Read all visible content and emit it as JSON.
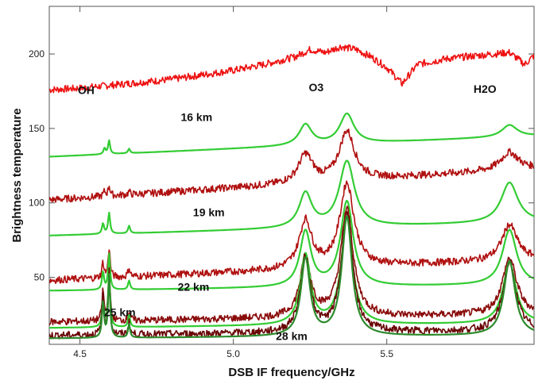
{
  "chart_data": {
    "type": "line",
    "title": "",
    "xlabel": "DSB IF frequency/GHz",
    "ylabel": "Brightness temperature",
    "xlim": [
      4.4,
      5.98
    ],
    "ylim": [
      5,
      232
    ],
    "x_ticks": [
      4.5,
      5.0,
      5.5
    ],
    "x_tick_labels": [
      "4.5",
      "5.0",
      "5.5"
    ],
    "y_ticks": [
      50,
      100,
      150,
      200
    ],
    "y_tick_labels": [
      "50",
      "100",
      "150",
      "200"
    ],
    "grid": false,
    "legend": "none",
    "annotations": [
      {
        "text": "OH",
        "x": 4.52,
        "y": 173
      },
      {
        "text": "O3",
        "x": 5.27,
        "y": 175
      },
      {
        "text": "H2O",
        "x": 5.82,
        "y": 174
      },
      {
        "text": "16 km",
        "x": 4.88,
        "y": 155
      },
      {
        "text": "19 km",
        "x": 4.92,
        "y": 91
      },
      {
        "text": "22 km",
        "x": 4.87,
        "y": 41
      },
      {
        "text": "25 km",
        "x": 4.63,
        "y": 24
      },
      {
        "text": "28 km",
        "x": 5.19,
        "y": 8
      }
    ],
    "series": [
      {
        "color": "#ee1111",
        "style": "measured",
        "x": [
          4.4,
          4.5,
          4.6,
          4.7,
          4.8,
          4.9,
          5.0,
          5.1,
          5.2,
          5.25,
          5.3,
          5.35,
          5.4,
          5.45,
          5.5,
          5.55,
          5.6,
          5.7,
          5.8,
          5.9,
          5.95,
          5.98
        ],
        "y": [
          176,
          177,
          179,
          181,
          183,
          186,
          189,
          193,
          198,
          203,
          201,
          205,
          203,
          198,
          191,
          180,
          193,
          197,
          199,
          201,
          193,
          199
        ]
      },
      {
        "color": "#33cc33",
        "style": "model",
        "base": [
          131,
          145
        ],
        "lines": [
          [
            4.58,
            4
          ],
          [
            4.595,
            9
          ],
          [
            4.66,
            3
          ],
          [
            5.235,
            14,
            0.025
          ],
          [
            5.37,
            20,
            0.028
          ],
          [
            5.9,
            8,
            0.03
          ]
        ]
      },
      {
        "color": "#b01010",
        "style": "measured",
        "base": [
          102,
          123
        ],
        "lines": [
          [
            4.58,
            3
          ],
          [
            4.595,
            7
          ],
          [
            4.66,
            2
          ],
          [
            5.235,
            19,
            0.028
          ],
          [
            5.37,
            33,
            0.03
          ],
          [
            5.9,
            12,
            0.035
          ]
        ]
      },
      {
        "color": "#33cc33",
        "style": "model",
        "base": [
          78,
          87
        ],
        "lines": [
          [
            4.575,
            7
          ],
          [
            4.595,
            14
          ],
          [
            4.66,
            5
          ],
          [
            5.235,
            23,
            0.025
          ],
          [
            5.37,
            44,
            0.03
          ],
          [
            5.9,
            27,
            0.033
          ]
        ]
      },
      {
        "color": "#b01010",
        "style": "measured",
        "base": [
          48,
          62
        ],
        "lines": [
          [
            4.575,
            10
          ],
          [
            4.595,
            20
          ],
          [
            4.66,
            6
          ],
          [
            5.235,
            32,
            0.025
          ],
          [
            5.37,
            56,
            0.028
          ],
          [
            5.9,
            24,
            0.03
          ]
        ]
      },
      {
        "color": "#33cc33",
        "style": "model",
        "base": [
          41,
          45
        ],
        "lines": [
          [
            4.575,
            12
          ],
          [
            4.595,
            24
          ],
          [
            4.66,
            6
          ],
          [
            5.235,
            37,
            0.022
          ],
          [
            5.37,
            57,
            0.025
          ],
          [
            5.9,
            37,
            0.028
          ]
        ]
      },
      {
        "color": "#8a0a0a",
        "style": "measured",
        "base": [
          20,
          25
        ],
        "lines": [
          [
            4.575,
            20
          ],
          [
            4.595,
            32
          ],
          [
            4.66,
            6
          ],
          [
            5.235,
            39,
            0.022
          ],
          [
            5.37,
            72,
            0.025
          ],
          [
            5.9,
            38,
            0.028
          ]
        ]
      },
      {
        "color": "#33cc33",
        "style": "model",
        "base": [
          16,
          19
        ],
        "lines": [
          [
            4.575,
            18
          ],
          [
            4.595,
            36
          ],
          [
            4.66,
            8
          ],
          [
            5.235,
            47,
            0.02
          ],
          [
            5.37,
            71,
            0.022
          ],
          [
            5.9,
            41,
            0.025
          ]
        ]
      },
      {
        "color": "#6a0606",
        "style": "measured",
        "base": [
          11,
          14
        ],
        "lines": [
          [
            4.575,
            28
          ],
          [
            4.595,
            42
          ],
          [
            4.66,
            8
          ],
          [
            5.235,
            50,
            0.02
          ],
          [
            5.37,
            80,
            0.022
          ],
          [
            5.9,
            46,
            0.025
          ]
        ]
      },
      {
        "color": "#2c8a2c",
        "style": "model",
        "base": [
          9,
          11
        ],
        "lines": [
          [
            4.575,
            24
          ],
          [
            4.595,
            42
          ],
          [
            4.66,
            9
          ],
          [
            5.235,
            52,
            0.018
          ],
          [
            5.37,
            80,
            0.02
          ],
          [
            5.9,
            50,
            0.022
          ]
        ]
      }
    ]
  }
}
